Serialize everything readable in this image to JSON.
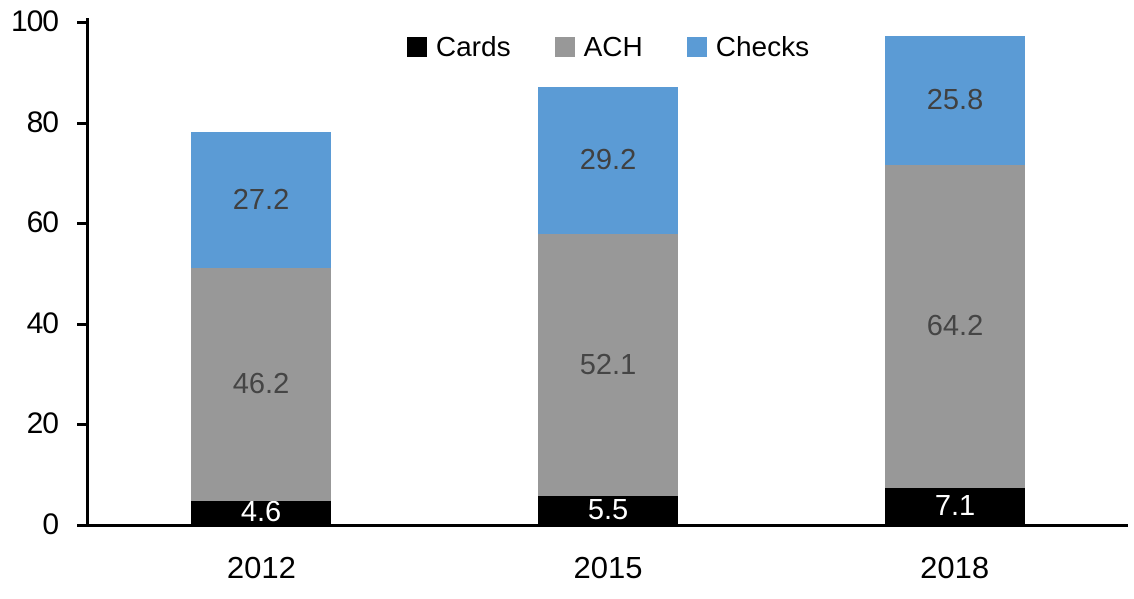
{
  "chart_data": {
    "type": "bar",
    "stacked": true,
    "title": "",
    "xlabel": "",
    "ylabel": "",
    "categories": [
      "2012",
      "2015",
      "2018"
    ],
    "series": [
      {
        "name": "Cards",
        "color": "#000000",
        "label_color": "#ffffff",
        "values": [
          4.6,
          5.5,
          7.1
        ]
      },
      {
        "name": "ACH",
        "color": "#989898",
        "label_color": "#454545",
        "values": [
          46.2,
          52.1,
          64.2
        ]
      },
      {
        "name": "Checks",
        "color": "#5B9BD5",
        "label_color": "#404040",
        "values": [
          27.2,
          29.2,
          25.8
        ]
      }
    ],
    "totals": [
      78.0,
      86.8,
      97.1
    ],
    "ylim": [
      0,
      100
    ],
    "yticks": [
      0,
      20,
      40,
      60,
      80,
      100
    ],
    "grid": false,
    "legend_position": "top-center",
    "axis_color": "#000000",
    "background_color": "#ffffff"
  }
}
